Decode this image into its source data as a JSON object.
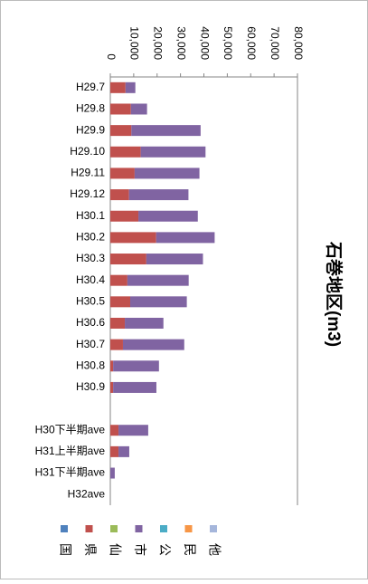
{
  "chart_data": {
    "type": "bar",
    "orientation": "horizontal",
    "stacked": true,
    "title": "石巻地区(m3)",
    "categories": [
      "H29.7",
      "H29.8",
      "H29.9",
      "H29.10",
      "H29.11",
      "H29.12",
      "H30.1",
      "H30.2",
      "H30.3",
      "H30.4",
      "H30.5",
      "H30.6",
      "H30.7",
      "H30.8",
      "H30.9",
      null,
      "H30下半期ave",
      "H31上半期ave",
      "H31下半期ave",
      "H32ave"
    ],
    "series": [
      {
        "name": "国",
        "color": "#4f81bd",
        "values": [
          0,
          0,
          0,
          0,
          0,
          0,
          0,
          0,
          0,
          0,
          0,
          0,
          0,
          0,
          0,
          null,
          0,
          0,
          0,
          0
        ]
      },
      {
        "name": "県",
        "color": "#c0504d",
        "values": [
          6500,
          8800,
          9000,
          13000,
          10400,
          8000,
          12000,
          19600,
          15400,
          7300,
          8500,
          6200,
          5400,
          1200,
          1200,
          null,
          3500,
          3500,
          0,
          0
        ]
      },
      {
        "name": "仙",
        "color": "#9bbb59",
        "values": [
          0,
          0,
          0,
          0,
          0,
          0,
          0,
          0,
          0,
          0,
          0,
          0,
          0,
          0,
          0,
          null,
          0,
          0,
          0,
          0
        ]
      },
      {
        "name": "市",
        "color": "#8064a2",
        "values": [
          4200,
          6900,
          29600,
          27700,
          27700,
          25400,
          25400,
          25000,
          24200,
          26200,
          24200,
          16500,
          26200,
          19600,
          18500,
          null,
          12700,
          4600,
          1900,
          0
        ]
      },
      {
        "name": "公",
        "color": "#4bacc6",
        "values": [
          0,
          0,
          0,
          0,
          0,
          0,
          0,
          0,
          0,
          0,
          0,
          0,
          0,
          0,
          0,
          null,
          0,
          0,
          0,
          0
        ]
      },
      {
        "name": "民",
        "color": "#f79646",
        "values": [
          0,
          0,
          0,
          0,
          0,
          0,
          0,
          0,
          0,
          0,
          0,
          0,
          0,
          0,
          0,
          null,
          0,
          0,
          0,
          0
        ]
      },
      {
        "name": "他",
        "color": "#a5b6db",
        "values": [
          0,
          0,
          0,
          0,
          0,
          0,
          0,
          0,
          0,
          0,
          0,
          0,
          0,
          0,
          0,
          null,
          0,
          0,
          0,
          0
        ]
      }
    ],
    "xlim": [
      0,
      80000
    ],
    "xticks": [
      0,
      {
        "value": 10000,
        "label": "10,000"
      },
      {
        "value": 20000,
        "label": "20,000"
      },
      {
        "value": 30000,
        "label": "30,000"
      },
      {
        "value": 40000,
        "label": "40,000"
      },
      {
        "value": 50000,
        "label": "50,000"
      },
      {
        "value": 60000,
        "label": "60,000"
      },
      {
        "value": 70000,
        "label": "70,000"
      },
      {
        "value": 80000,
        "label": "80,000"
      }
    ],
    "legend": "bottom"
  }
}
